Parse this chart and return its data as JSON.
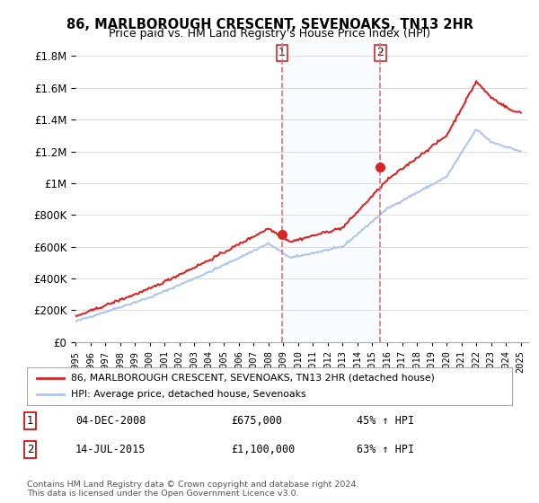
{
  "title": "86, MARLBOROUGH CRESCENT, SEVENOAKS, TN13 2HR",
  "subtitle": "Price paid vs. HM Land Registry's House Price Index (HPI)",
  "ylabel_ticks": [
    "£0",
    "£200K",
    "£400K",
    "£600K",
    "£800K",
    "£1M",
    "£1.2M",
    "£1.4M",
    "£1.6M",
    "£1.8M"
  ],
  "ytick_vals": [
    0,
    200000,
    400000,
    600000,
    800000,
    1000000,
    1200000,
    1400000,
    1600000,
    1800000
  ],
  "ylim": [
    0,
    1900000
  ],
  "xlim_start": 1995.0,
  "xlim_end": 2025.5,
  "purchase1_year": 2008.92,
  "purchase1_price": 675000,
  "purchase2_year": 2015.54,
  "purchase2_price": 1100000,
  "hpi_color": "#aec6e8",
  "price_color": "#d62728",
  "marker_color": "#d62728",
  "vline_color": "#e87070",
  "shading_color": "#ddeeff",
  "legend_label_price": "86, MARLBOROUGH CRESCENT, SEVENOAKS, TN13 2HR (detached house)",
  "legend_label_hpi": "HPI: Average price, detached house, Sevenoaks",
  "annotation1_label": "1",
  "annotation2_label": "2",
  "table_row1": "04-DEC-2008        £675,000        45% ↑ HPI",
  "table_row2": "14-JUL-2015        £1,100,000        63% ↑ HPI",
  "footer": "Contains HM Land Registry data © Crown copyright and database right 2024.\nThis data is licensed under the Open Government Licence v3.0.",
  "background_color": "#ffffff",
  "plot_bg_color": "#ffffff",
  "grid_color": "#dddddd"
}
